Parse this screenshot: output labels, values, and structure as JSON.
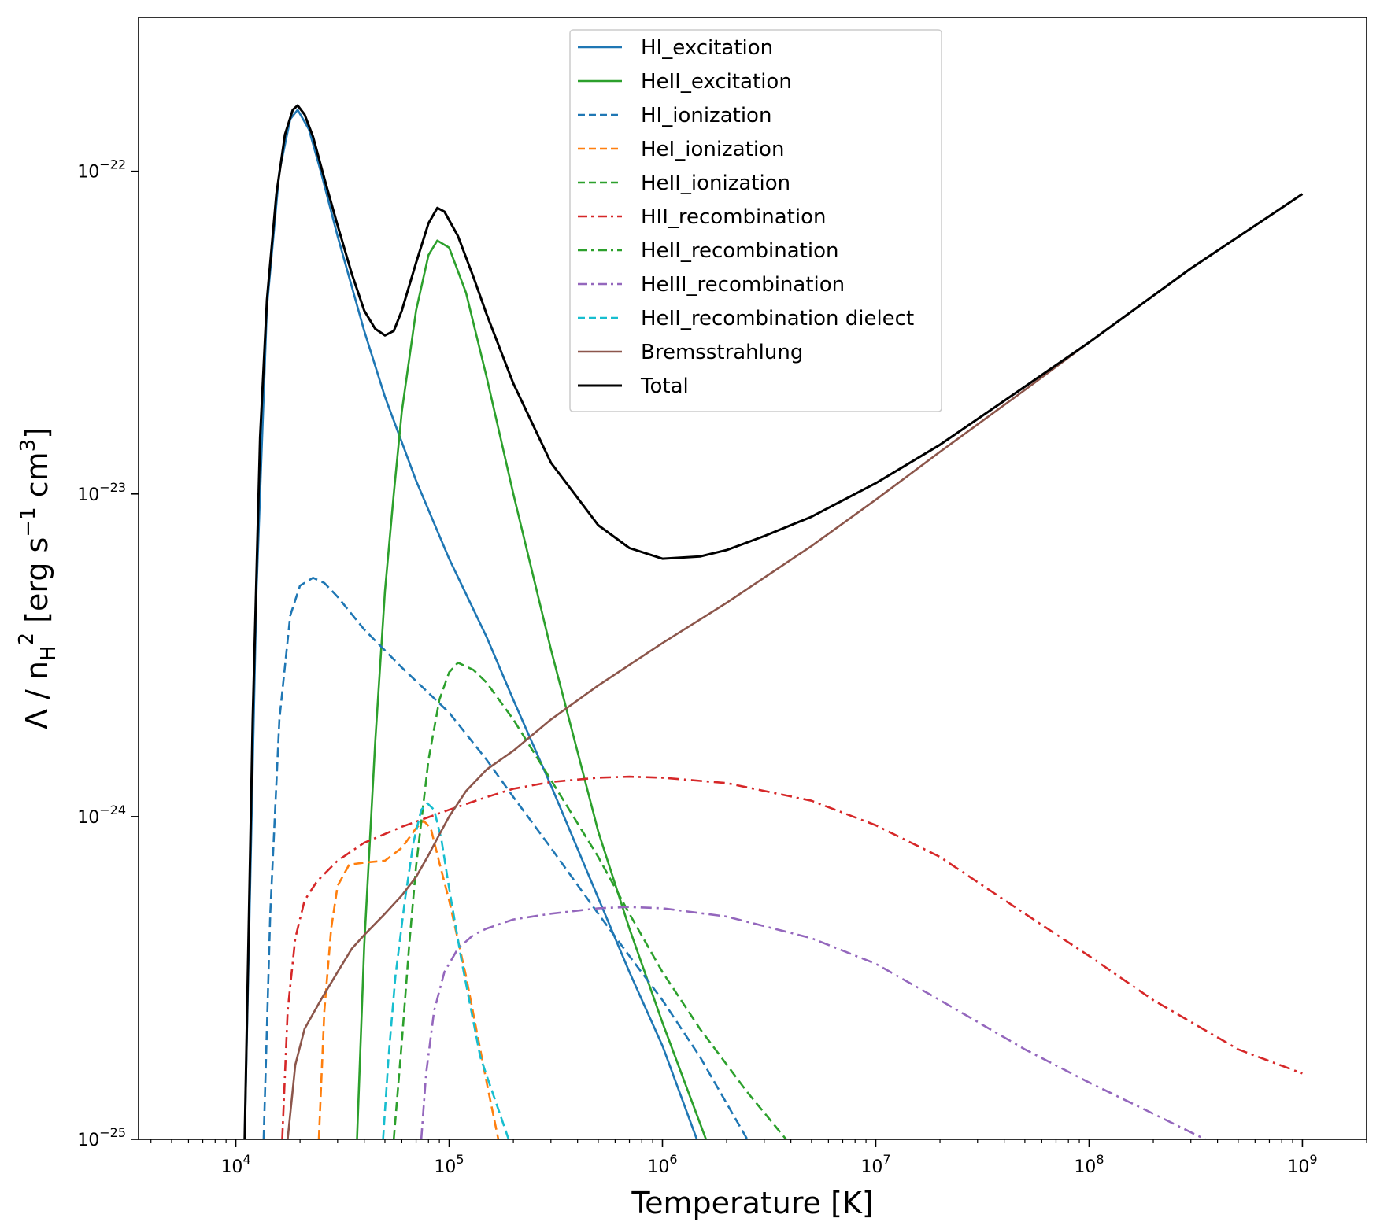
{
  "chart_data": {
    "type": "line",
    "title": "",
    "xlabel": "Temperature [K]",
    "ylabel": "Λ / n_H^2 [erg s^-1 cm^3]",
    "xscale": "log",
    "yscale": "log",
    "xlim": [
      3500,
      2000000000
    ],
    "ylim": [
      1e-25,
      3e-22
    ],
    "grid": false,
    "legend_position": "top-center",
    "x_ticks": [
      {
        "value": 10000,
        "base": "10",
        "exp": "4"
      },
      {
        "value": 100000,
        "base": "10",
        "exp": "5"
      },
      {
        "value": 1000000,
        "base": "10",
        "exp": "6"
      },
      {
        "value": 10000000,
        "base": "10",
        "exp": "7"
      },
      {
        "value": 100000000,
        "base": "10",
        "exp": "8"
      },
      {
        "value": 1000000000,
        "base": "10",
        "exp": "9"
      }
    ],
    "y_ticks": [
      {
        "value": 1e-25,
        "base": "10",
        "exp": "−25"
      },
      {
        "value": 1e-24,
        "base": "10",
        "exp": "−24"
      },
      {
        "value": 1e-23,
        "base": "10",
        "exp": "−23"
      },
      {
        "value": 1e-22,
        "base": "10",
        "exp": "−22"
      }
    ],
    "series": [
      {
        "name": "HI_excitation",
        "color": "#1f77b4",
        "style": "solid",
        "points": [
          [
            11000,
            1e-25
          ],
          [
            12500,
            5e-24
          ],
          [
            14000,
            3.8e-23
          ],
          [
            16000,
            1e-22
          ],
          [
            18000,
            1.45e-22
          ],
          [
            19500,
            1.55e-22
          ],
          [
            22000,
            1.35e-22
          ],
          [
            25000,
            1e-22
          ],
          [
            30000,
            6.3e-23
          ],
          [
            40000,
            3.2e-23
          ],
          [
            50000,
            2e-23
          ],
          [
            70000,
            1.1e-23
          ],
          [
            100000,
            6.3e-24
          ],
          [
            150000,
            3.6e-24
          ],
          [
            200000,
            2.3e-24
          ],
          [
            300000,
            1.25e-24
          ],
          [
            500000,
            5.6e-25
          ],
          [
            700000,
            3.3e-25
          ],
          [
            1000000,
            1.95e-25
          ],
          [
            1450000,
            1e-25
          ]
        ]
      },
      {
        "name": "HeII_excitation",
        "color": "#2ca02c",
        "style": "solid",
        "points": [
          [
            37000,
            1e-25
          ],
          [
            40000,
            4e-25
          ],
          [
            45000,
            1.7e-24
          ],
          [
            50000,
            5e-24
          ],
          [
            55000,
            1e-23
          ],
          [
            60000,
            1.8e-23
          ],
          [
            70000,
            3.7e-23
          ],
          [
            80000,
            5.5e-23
          ],
          [
            88000,
            6.1e-23
          ],
          [
            100000,
            5.8e-23
          ],
          [
            120000,
            4.2e-23
          ],
          [
            150000,
            2.3e-23
          ],
          [
            200000,
            1e-23
          ],
          [
            300000,
            3.3e-24
          ],
          [
            500000,
            9e-25
          ],
          [
            700000,
            4.5e-25
          ],
          [
            1000000,
            2.3e-25
          ],
          [
            1600000,
            1e-25
          ]
        ]
      },
      {
        "name": "HI_ionization",
        "color": "#1f77b4",
        "style": "dashed",
        "points": [
          [
            13500,
            1e-25
          ],
          [
            14500,
            5e-25
          ],
          [
            16000,
            2e-24
          ],
          [
            18000,
            4.2e-24
          ],
          [
            20000,
            5.2e-24
          ],
          [
            23000,
            5.5e-24
          ],
          [
            26000,
            5.3e-24
          ],
          [
            30000,
            4.8e-24
          ],
          [
            40000,
            3.8e-24
          ],
          [
            60000,
            2.9e-24
          ],
          [
            100000,
            2.1e-24
          ],
          [
            150000,
            1.5e-24
          ],
          [
            200000,
            1.15e-24
          ],
          [
            300000,
            8e-25
          ],
          [
            500000,
            5e-25
          ],
          [
            700000,
            3.7e-25
          ],
          [
            1000000,
            2.7e-25
          ],
          [
            1500000,
            1.8e-25
          ],
          [
            2500000,
            1e-25
          ]
        ]
      },
      {
        "name": "HeI_ionization",
        "color": "#ff7f0e",
        "style": "dashed",
        "points": [
          [
            24500,
            1e-25
          ],
          [
            26000,
            2.5e-25
          ],
          [
            28000,
            4.5e-25
          ],
          [
            30000,
            6.1e-25
          ],
          [
            34000,
            7.1e-25
          ],
          [
            40000,
            7.2e-25
          ],
          [
            50000,
            7.3e-25
          ],
          [
            60000,
            8e-25
          ],
          [
            70000,
            9.2e-25
          ],
          [
            76000,
            9.7e-25
          ],
          [
            82000,
            9.2e-25
          ],
          [
            90000,
            7.2e-25
          ],
          [
            100000,
            5.5e-25
          ],
          [
            120000,
            3.2e-25
          ],
          [
            150000,
            1.5e-25
          ],
          [
            170000,
            1e-25
          ]
        ]
      },
      {
        "name": "HeII_ionization",
        "color": "#2ca02c",
        "style": "dashed",
        "points": [
          [
            55000,
            1e-25
          ],
          [
            60000,
            2e-25
          ],
          [
            65000,
            4e-25
          ],
          [
            70000,
            7e-25
          ],
          [
            80000,
            1.5e-24
          ],
          [
            90000,
            2.3e-24
          ],
          [
            100000,
            2.8e-24
          ],
          [
            110000,
            3e-24
          ],
          [
            130000,
            2.85e-24
          ],
          [
            150000,
            2.6e-24
          ],
          [
            200000,
            2e-24
          ],
          [
            300000,
            1.3e-24
          ],
          [
            500000,
            7.5e-25
          ],
          [
            700000,
            5e-25
          ],
          [
            1000000,
            3.3e-25
          ],
          [
            1500000,
            2.2e-25
          ],
          [
            2500000,
            1.4e-25
          ],
          [
            3800000,
            1e-25
          ]
        ]
      },
      {
        "name": "HII_recombination",
        "color": "#d62728",
        "style": "dashdot",
        "points": [
          [
            16500,
            1e-25
          ],
          [
            17500,
            2.5e-25
          ],
          [
            19000,
            4.2e-25
          ],
          [
            21000,
            5.5e-25
          ],
          [
            24000,
            6.3e-25
          ],
          [
            30000,
            7.3e-25
          ],
          [
            40000,
            8.3e-25
          ],
          [
            60000,
            9.3e-25
          ],
          [
            100000,
            1.05e-24
          ],
          [
            150000,
            1.15e-24
          ],
          [
            200000,
            1.22e-24
          ],
          [
            300000,
            1.28e-24
          ],
          [
            500000,
            1.32e-24
          ],
          [
            700000,
            1.33e-24
          ],
          [
            1000000,
            1.32e-24
          ],
          [
            2000000,
            1.27e-24
          ],
          [
            5000000,
            1.12e-24
          ],
          [
            10000000,
            9.4e-25
          ],
          [
            20000000,
            7.5e-25
          ],
          [
            50000000,
            5e-25
          ],
          [
            100000000,
            3.7e-25
          ],
          [
            200000000,
            2.7e-25
          ],
          [
            500000000,
            1.9e-25
          ],
          [
            1000000000,
            1.6e-25
          ]
        ]
      },
      {
        "name": "HeII_recombination",
        "color": "#2ca02c",
        "style": "dashdot",
        "points": []
      },
      {
        "name": "HeIII_recombination",
        "color": "#9467bd",
        "style": "dashdot",
        "points": [
          [
            74000,
            1e-25
          ],
          [
            78000,
            1.6e-25
          ],
          [
            85000,
            2.5e-25
          ],
          [
            95000,
            3.3e-25
          ],
          [
            110000,
            3.9e-25
          ],
          [
            130000,
            4.3e-25
          ],
          [
            150000,
            4.5e-25
          ],
          [
            200000,
            4.8e-25
          ],
          [
            300000,
            5e-25
          ],
          [
            500000,
            5.2e-25
          ],
          [
            700000,
            5.25e-25
          ],
          [
            1000000,
            5.2e-25
          ],
          [
            2000000,
            4.9e-25
          ],
          [
            5000000,
            4.2e-25
          ],
          [
            10000000,
            3.5e-25
          ],
          [
            20000000,
            2.7e-25
          ],
          [
            50000000,
            1.9e-25
          ],
          [
            100000000,
            1.5e-25
          ],
          [
            200000000,
            1.2e-25
          ],
          [
            350000000,
            1e-25
          ]
        ]
      },
      {
        "name": "HeII_recombination dielect",
        "color": "#17becf",
        "style": "dashed",
        "points": [
          [
            49000,
            1e-25
          ],
          [
            52000,
            1.8e-25
          ],
          [
            56000,
            3.2e-25
          ],
          [
            62000,
            5.5e-25
          ],
          [
            68000,
            8.3e-25
          ],
          [
            74000,
            1.05e-24
          ],
          [
            79000,
            1.1e-24
          ],
          [
            85000,
            1.05e-24
          ],
          [
            92000,
            8.5e-25
          ],
          [
            100000,
            6e-25
          ],
          [
            115000,
            3.5e-25
          ],
          [
            140000,
            1.8e-25
          ],
          [
            190000,
            1e-25
          ]
        ]
      },
      {
        "name": "Bremsstrahlung",
        "color": "#8c564b",
        "style": "solid",
        "points": [
          [
            17500,
            1e-25
          ],
          [
            19000,
            1.7e-25
          ],
          [
            21000,
            2.2e-25
          ],
          [
            25000,
            2.7e-25
          ],
          [
            30000,
            3.3e-25
          ],
          [
            35000,
            3.9e-25
          ],
          [
            40000,
            4.3e-25
          ],
          [
            50000,
            5e-25
          ],
          [
            60000,
            5.7e-25
          ],
          [
            70000,
            6.5e-25
          ],
          [
            80000,
            7.6e-25
          ],
          [
            90000,
            8.8e-25
          ],
          [
            100000,
            1e-24
          ],
          [
            120000,
            1.2e-24
          ],
          [
            150000,
            1.4e-24
          ],
          [
            200000,
            1.6e-24
          ],
          [
            300000,
            2e-24
          ],
          [
            500000,
            2.55e-24
          ],
          [
            1000000,
            3.45e-24
          ],
          [
            2000000,
            4.6e-24
          ],
          [
            5000000,
            6.9e-24
          ],
          [
            10000000,
            9.6e-24
          ],
          [
            20000000,
            1.35e-23
          ],
          [
            50000000,
            2.1e-23
          ],
          [
            100000000,
            2.95e-23
          ],
          [
            300000000,
            5e-23
          ],
          [
            1000000000,
            8.5e-23
          ]
        ]
      },
      {
        "name": "Total",
        "color": "#000000",
        "style": "solid",
        "width": 3,
        "points": [
          [
            11000,
            1e-25
          ],
          [
            12000,
            2e-24
          ],
          [
            13000,
            1.5e-23
          ],
          [
            14000,
            4e-23
          ],
          [
            15500,
            8.5e-23
          ],
          [
            17000,
            1.3e-22
          ],
          [
            18500,
            1.55e-22
          ],
          [
            19500,
            1.6e-22
          ],
          [
            21000,
            1.5e-22
          ],
          [
            23000,
            1.28e-22
          ],
          [
            26000,
            9.5e-23
          ],
          [
            30000,
            6.8e-23
          ],
          [
            35000,
            4.8e-23
          ],
          [
            40000,
            3.7e-23
          ],
          [
            45000,
            3.25e-23
          ],
          [
            50000,
            3.1e-23
          ],
          [
            55000,
            3.2e-23
          ],
          [
            60000,
            3.7e-23
          ],
          [
            70000,
            5.2e-23
          ],
          [
            80000,
            6.9e-23
          ],
          [
            88000,
            7.7e-23
          ],
          [
            95000,
            7.5e-23
          ],
          [
            110000,
            6.3e-23
          ],
          [
            130000,
            4.7e-23
          ],
          [
            150000,
            3.6e-23
          ],
          [
            200000,
            2.2e-23
          ],
          [
            300000,
            1.25e-23
          ],
          [
            500000,
            8e-24
          ],
          [
            700000,
            6.8e-24
          ],
          [
            1000000,
            6.3e-24
          ],
          [
            1500000,
            6.4e-24
          ],
          [
            2000000,
            6.7e-24
          ],
          [
            3000000,
            7.4e-24
          ],
          [
            5000000,
            8.5e-24
          ],
          [
            10000000,
            1.08e-23
          ],
          [
            20000000,
            1.42e-23
          ],
          [
            50000000,
            2.15e-23
          ],
          [
            100000000,
            2.95e-23
          ],
          [
            300000000,
            5e-23
          ],
          [
            1000000000,
            8.5e-23
          ]
        ]
      }
    ]
  }
}
